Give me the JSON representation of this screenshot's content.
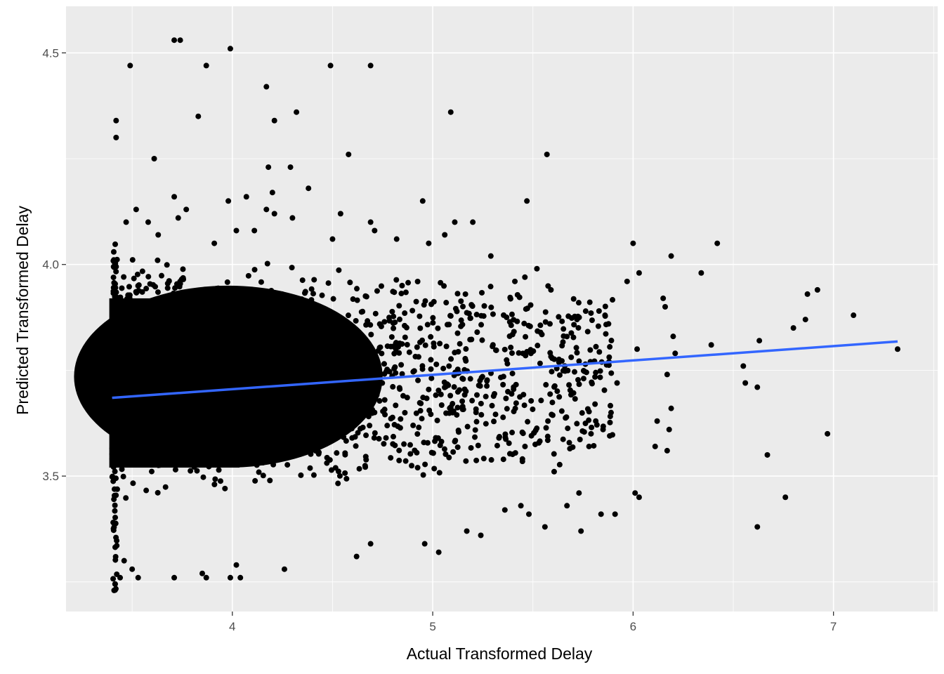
{
  "chart_data": {
    "type": "scatter",
    "title": "",
    "xlabel": "Actual Transformed Delay",
    "ylabel": "Predicted Transformed Delay",
    "xlim": [
      3.17,
      7.52
    ],
    "ylim": [
      3.18,
      4.61
    ],
    "x_ticks": [
      4,
      5,
      6,
      7
    ],
    "x_tick_labels": [
      "4",
      "5",
      "6",
      "7"
    ],
    "y_ticks": [
      3.5,
      4.0,
      4.5
    ],
    "y_tick_labels": [
      "3.5",
      "4.0",
      "4.5"
    ],
    "grid": true,
    "legend": "none",
    "colors": {
      "panel_background": "#ebebeb",
      "grid_major": "#ffffff",
      "points": "#000000",
      "trend_line": "#3366ff",
      "tick_label": "#4d4d4d"
    },
    "trend_line": {
      "method": "linear",
      "x": [
        3.4,
        7.32
      ],
      "y": [
        3.685,
        3.818
      ]
    },
    "dense_region": {
      "note": "thousands of overlapping points",
      "x_range": [
        3.4,
        5.2
      ],
      "y_range": [
        3.5,
        3.95
      ]
    },
    "points": [
      [
        3.71,
        4.53
      ],
      [
        3.74,
        4.53
      ],
      [
        3.99,
        4.51
      ],
      [
        3.49,
        4.47
      ],
      [
        3.87,
        4.47
      ],
      [
        4.49,
        4.47
      ],
      [
        4.69,
        4.47
      ],
      [
        4.17,
        4.42
      ],
      [
        4.32,
        4.36
      ],
      [
        5.09,
        4.36
      ],
      [
        3.42,
        4.34
      ],
      [
        3.83,
        4.35
      ],
      [
        4.21,
        4.34
      ],
      [
        3.42,
        4.3
      ],
      [
        4.58,
        4.26
      ],
      [
        5.57,
        4.26
      ],
      [
        3.61,
        4.25
      ],
      [
        4.18,
        4.23
      ],
      [
        4.29,
        4.23
      ],
      [
        4.38,
        4.18
      ],
      [
        3.71,
        4.16
      ],
      [
        3.98,
        4.15
      ],
      [
        4.07,
        4.16
      ],
      [
        4.2,
        4.17
      ],
      [
        5.47,
        4.15
      ],
      [
        4.95,
        4.15
      ],
      [
        3.52,
        4.13
      ],
      [
        3.77,
        4.13
      ],
      [
        4.17,
        4.13
      ],
      [
        4.21,
        4.12
      ],
      [
        3.47,
        4.1
      ],
      [
        3.58,
        4.1
      ],
      [
        3.73,
        4.11
      ],
      [
        4.3,
        4.11
      ],
      [
        4.54,
        4.12
      ],
      [
        4.69,
        4.1
      ],
      [
        5.11,
        4.1
      ],
      [
        5.2,
        4.1
      ],
      [
        6.42,
        4.05
      ],
      [
        6.0,
        4.05
      ],
      [
        6.19,
        4.02
      ],
      [
        6.34,
        3.98
      ],
      [
        6.03,
        3.98
      ],
      [
        6.92,
        3.94
      ],
      [
        6.87,
        3.93
      ],
      [
        6.15,
        3.92
      ],
      [
        6.16,
        3.9
      ],
      [
        6.86,
        3.87
      ],
      [
        7.1,
        3.88
      ],
      [
        6.8,
        3.85
      ],
      [
        6.2,
        3.83
      ],
      [
        6.63,
        3.82
      ],
      [
        6.39,
        3.81
      ],
      [
        6.21,
        3.79
      ],
      [
        6.02,
        3.8
      ],
      [
        7.32,
        3.8
      ],
      [
        6.55,
        3.76
      ],
      [
        6.56,
        3.72
      ],
      [
        6.62,
        3.71
      ],
      [
        6.17,
        3.74
      ],
      [
        6.19,
        3.66
      ],
      [
        6.12,
        3.63
      ],
      [
        6.18,
        3.61
      ],
      [
        6.17,
        3.56
      ],
      [
        6.11,
        3.57
      ],
      [
        6.97,
        3.6
      ],
      [
        6.67,
        3.55
      ],
      [
        6.76,
        3.45
      ],
      [
        6.62,
        3.38
      ],
      [
        6.01,
        3.46
      ],
      [
        6.03,
        3.45
      ],
      [
        5.91,
        3.41
      ],
      [
        5.84,
        3.41
      ],
      [
        5.74,
        3.37
      ],
      [
        5.56,
        3.38
      ],
      [
        5.67,
        3.43
      ],
      [
        5.73,
        3.46
      ],
      [
        5.48,
        3.41
      ],
      [
        5.44,
        3.43
      ],
      [
        5.36,
        3.42
      ],
      [
        5.24,
        3.36
      ],
      [
        5.17,
        3.37
      ],
      [
        5.03,
        3.32
      ],
      [
        4.96,
        3.34
      ],
      [
        4.62,
        3.31
      ],
      [
        4.69,
        3.34
      ],
      [
        4.26,
        3.28
      ],
      [
        4.02,
        3.29
      ],
      [
        3.99,
        3.26
      ],
      [
        4.04,
        3.26
      ],
      [
        3.85,
        3.27
      ],
      [
        3.87,
        3.26
      ],
      [
        3.71,
        3.26
      ],
      [
        3.53,
        3.26
      ],
      [
        3.5,
        3.28
      ],
      [
        3.41,
        3.23
      ],
      [
        3.44,
        3.26
      ],
      [
        3.46,
        3.3
      ],
      [
        5.79,
        3.6
      ],
      [
        5.85,
        3.61
      ],
      [
        5.78,
        3.57
      ],
      [
        5.89,
        3.65
      ],
      [
        5.81,
        3.67
      ],
      [
        5.92,
        3.72
      ],
      [
        5.88,
        3.77
      ],
      [
        5.83,
        3.89
      ],
      [
        5.72,
        3.87
      ],
      [
        5.97,
        3.96
      ],
      [
        5.86,
        3.88
      ],
      [
        5.59,
        3.94
      ],
      [
        5.46,
        3.97
      ],
      [
        5.52,
        3.99
      ],
      [
        5.29,
        4.02
      ],
      [
        5.41,
        3.96
      ],
      [
        5.06,
        4.07
      ],
      [
        4.98,
        4.05
      ],
      [
        4.82,
        4.06
      ],
      [
        4.71,
        4.08
      ],
      [
        4.5,
        4.06
      ],
      [
        4.11,
        4.08
      ],
      [
        4.02,
        4.08
      ],
      [
        3.63,
        4.07
      ],
      [
        3.91,
        4.05
      ]
    ]
  }
}
